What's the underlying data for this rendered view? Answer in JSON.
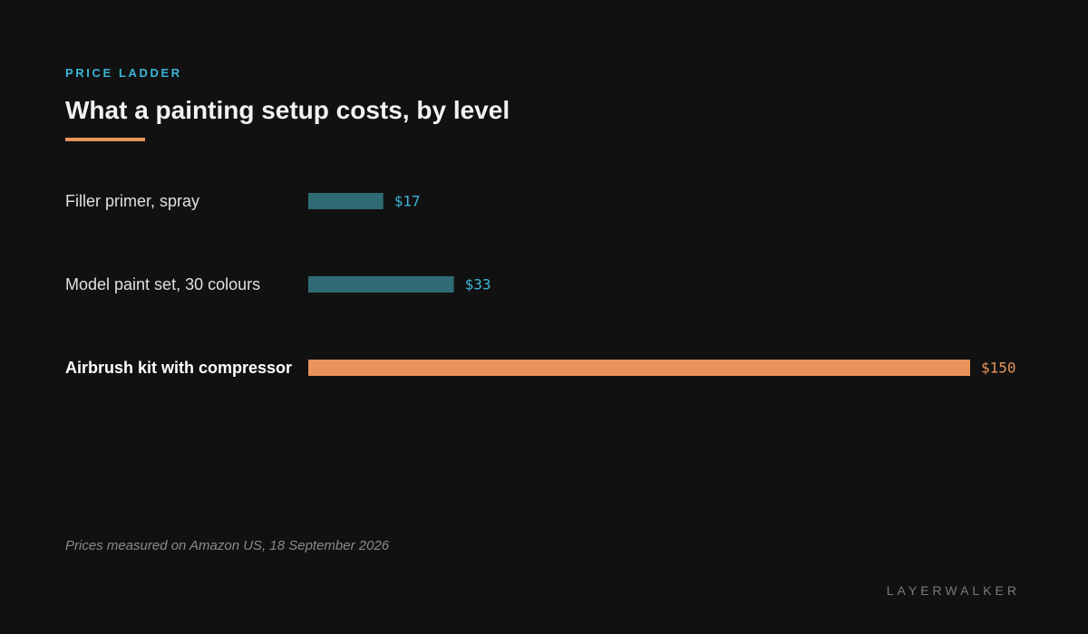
{
  "eyebrow": "PRICE LADDER",
  "title": "What a painting setup costs, by level",
  "footnote": "Prices measured on Amazon US, 18 September 2026",
  "brand": "LAYERWALKER",
  "colors": {
    "background": "#111111",
    "accent": "#e8935a",
    "eyebrow": "#3cb4d8",
    "bar_normal": "#2f6b75",
    "value_normal": "#3cb4d8",
    "bar_highlight": "#e8935a",
    "value_highlight": "#e8935a"
  },
  "chart_data": {
    "type": "bar",
    "orientation": "horizontal",
    "categories": [
      "Filler primer, spray",
      "Model paint set, 30 colours",
      "Airbrush kit with compressor"
    ],
    "values": [
      17,
      33,
      150
    ],
    "value_labels": [
      "$17",
      "$33",
      "$150"
    ],
    "highlight_index": 2,
    "title": "What a painting setup costs, by level",
    "xlabel": "",
    "ylabel": "",
    "xlim": [
      0,
      150
    ],
    "grid": false,
    "legend": "none"
  }
}
